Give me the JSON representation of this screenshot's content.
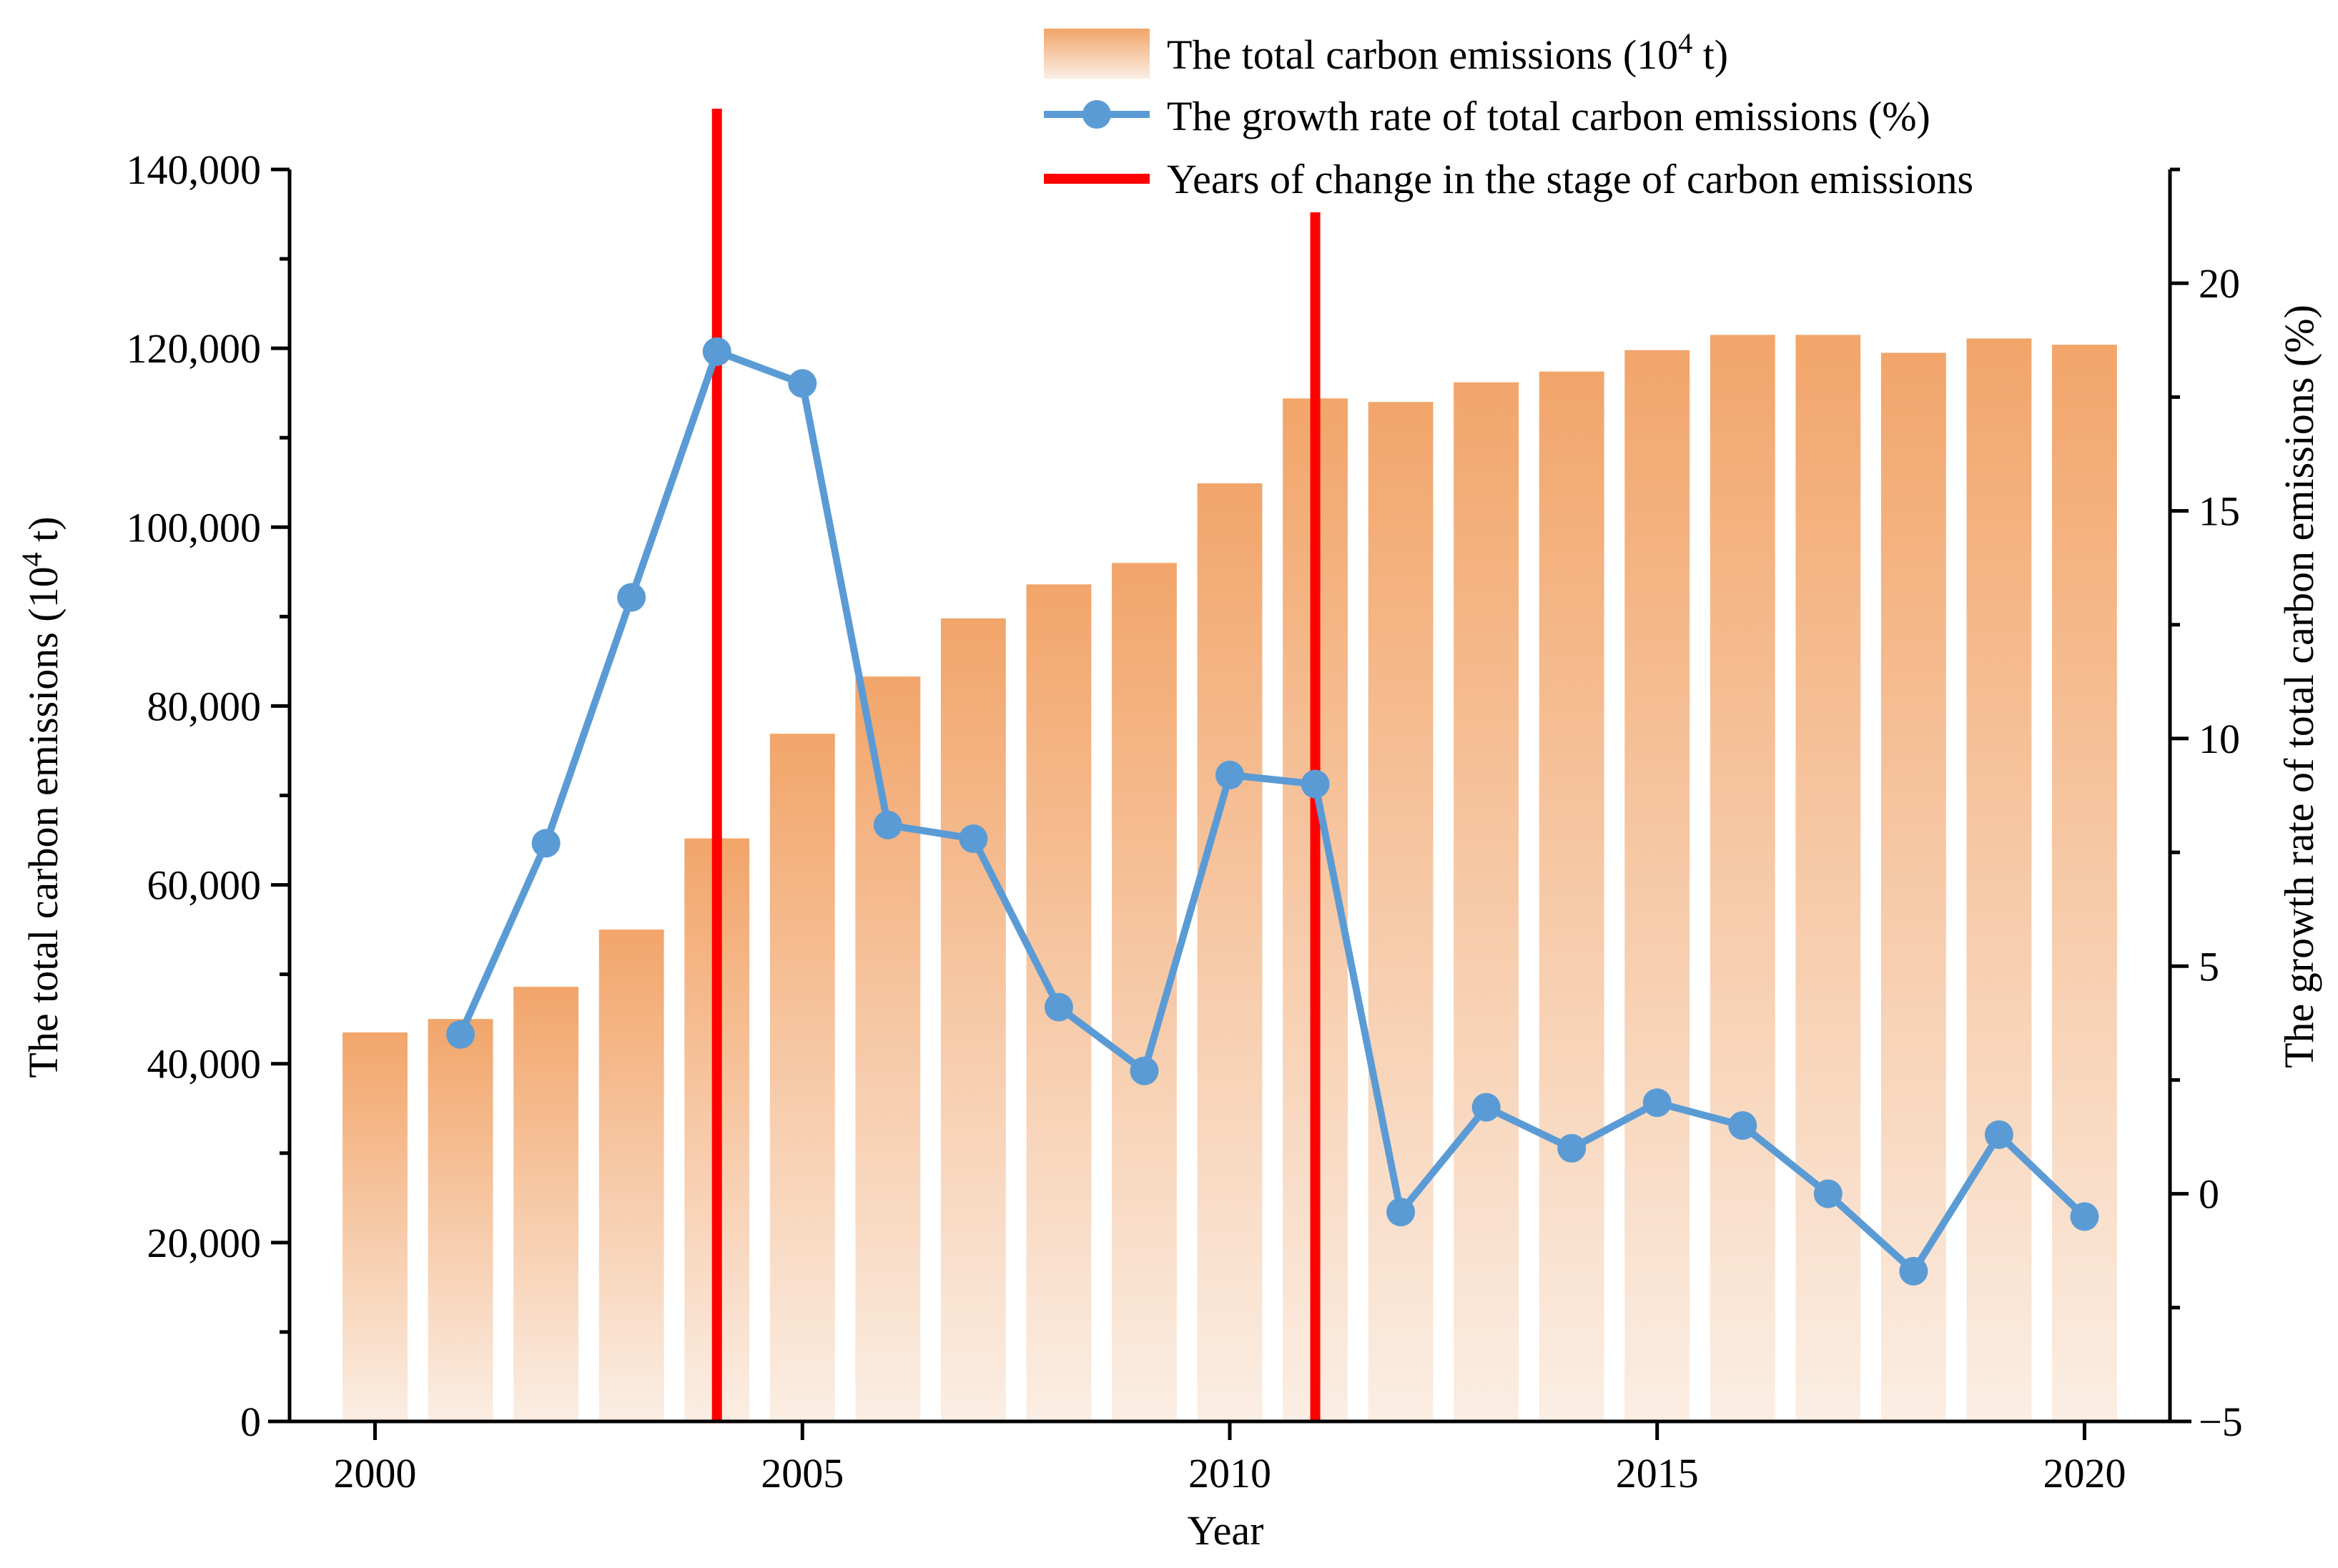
{
  "colors": {
    "bar_top": "#F2A56A",
    "bar_bottom": "#FBEEE4",
    "line": "#5B9BD5",
    "stage_line": "#FF0000",
    "axis": "#000000"
  },
  "chart_data": {
    "type": "bar+line",
    "xlabel": "Year",
    "ylabel_left": "The total carbon emissions (10",
    "ylabel_left_sup": "4",
    "ylabel_left_tail": " t)",
    "ylabel_right": "The growth rate of total carbon emissions (%)",
    "x": [
      2000,
      2001,
      2002,
      2003,
      2004,
      2005,
      2006,
      2007,
      2008,
      2009,
      2010,
      2011,
      2012,
      2013,
      2014,
      2015,
      2016,
      2017,
      2018,
      2019,
      2020
    ],
    "x_ticks": [
      2000,
      2005,
      2010,
      2015,
      2020
    ],
    "x_tick_labels": [
      "2000",
      "2005",
      "2010",
      "2015",
      "2020"
    ],
    "xlim": [
      1999,
      2021
    ],
    "bars": {
      "name": "The total carbon emissions (10^4 t)",
      "values": [
        43500,
        45000,
        48600,
        55000,
        65200,
        76900,
        83300,
        89800,
        93600,
        96000,
        104900,
        114400,
        114000,
        116200,
        117400,
        119800,
        121500,
        121500,
        119500,
        121100,
        120400
      ]
    },
    "line": {
      "name": "The growth rate of total carbon emissions (%)",
      "x": [
        2001,
        2002,
        2003,
        2004,
        2005,
        2006,
        2007,
        2008,
        2009,
        2010,
        2011,
        2012,
        2013,
        2014,
        2015,
        2016,
        2017,
        2018,
        2019,
        2020
      ],
      "values": [
        3.5,
        7.7,
        13.1,
        18.5,
        17.8,
        8.1,
        7.8,
        4.1,
        2.7,
        9.2,
        9.0,
        -0.4,
        1.9,
        1.0,
        2.0,
        1.5,
        0.0,
        -1.7,
        1.3,
        -0.5
      ]
    },
    "stage_years": {
      "name": "Years of change in the stage of carbon emissions",
      "values": [
        2004,
        2011
      ]
    },
    "ylim_left": [
      0,
      140000
    ],
    "yticks_left": [
      0,
      20000,
      40000,
      60000,
      80000,
      100000,
      120000,
      140000
    ],
    "ytick_labels_left": [
      "0",
      "20,000",
      "40,000",
      "60,000",
      "80,000",
      "100,000",
      "120,000",
      "140,000"
    ],
    "ylim_right": [
      -5,
      22.5
    ],
    "yticks_right": [
      -5,
      0,
      5,
      10,
      15,
      20
    ],
    "ytick_labels_right": [
      "−5",
      "0",
      "5",
      "10",
      "15",
      "20"
    ],
    "legend": {
      "placement": "top-right",
      "entries": [
        {
          "label": "The total carbon emissions (10",
          "sup": "4",
          "tail": " t)",
          "kind": "bar"
        },
        {
          "label": "The growth rate of total carbon emissions (%)",
          "kind": "line"
        },
        {
          "label": "Years of change in the stage of carbon emissions",
          "kind": "stage"
        }
      ]
    }
  }
}
